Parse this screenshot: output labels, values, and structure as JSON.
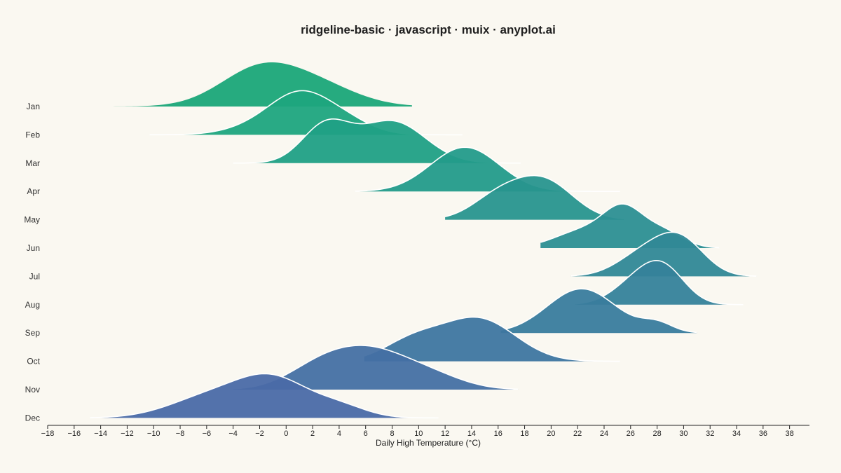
{
  "chart_data": {
    "type": "ridgeline",
    "title": "ridgeline-basic · javascript · muix · anyplot.ai",
    "xlabel": "Daily High Temperature (°C)",
    "ylabel": "",
    "xlim": [
      -18,
      39.5
    ],
    "x_ticks": [
      -18,
      -16,
      -14,
      -12,
      -10,
      -8,
      -6,
      -4,
      -2,
      0,
      2,
      4,
      6,
      8,
      10,
      12,
      14,
      16,
      18,
      20,
      22,
      24,
      26,
      28,
      30,
      32,
      34,
      36,
      38
    ],
    "grid": false,
    "series": [
      {
        "name": "Jan",
        "color": "#1aa678",
        "peaks": [
          [
            -2,
            3.0,
            1.0
          ],
          [
            2.5,
            3.0,
            0.5
          ]
        ],
        "range": [
          -15,
          9.5
        ]
      },
      {
        "name": "Feb",
        "color": "#1da57e",
        "peaks": [
          [
            -1.5,
            2.5,
            0.25
          ],
          [
            1.2,
            2.2,
            0.85
          ],
          [
            4.5,
            2.0,
            0.3
          ]
        ],
        "range": [
          -10.3,
          13.3
        ]
      },
      {
        "name": "Mar",
        "color": "#20a085",
        "peaks": [
          [
            3,
            1.8,
            0.85
          ],
          [
            8,
            2.5,
            0.95
          ]
        ],
        "range": [
          -4,
          17.7
        ]
      },
      {
        "name": "Apr",
        "color": "#239b8a",
        "peaks": [
          [
            13.5,
            2.6,
            1.0
          ]
        ],
        "range": [
          5.2,
          25.2
        ]
      },
      {
        "name": "May",
        "color": "#28958e",
        "peaks": [
          [
            16,
            2.0,
            0.55
          ],
          [
            19.5,
            2.2,
            0.95
          ]
        ],
        "range": [
          12,
          25.5
        ]
      },
      {
        "name": "Jun",
        "color": "#2c8f92",
        "peaks": [
          [
            22.5,
            2.2,
            0.5
          ],
          [
            25.5,
            1.5,
            1.0
          ],
          [
            28.5,
            1.5,
            0.45
          ]
        ],
        "range": [
          19.2,
          32.7
        ]
      },
      {
        "name": "Jul",
        "color": "#308896",
        "peaks": [
          [
            27,
            2.0,
            0.65
          ],
          [
            29.8,
            1.8,
            1.0
          ]
        ],
        "range": [
          21.5,
          35.5
        ]
      },
      {
        "name": "Aug",
        "color": "#35829a",
        "peaks": [
          [
            26.5,
            1.8,
            0.7
          ],
          [
            28.6,
            1.6,
            0.95
          ]
        ],
        "range": [
          21.8,
          34.5
        ]
      },
      {
        "name": "Sep",
        "color": "#397c9d",
        "peaks": [
          [
            22.3,
            2.6,
            1.0
          ],
          [
            28,
            1.2,
            0.2
          ]
        ],
        "range": [
          16.2,
          31
        ]
      },
      {
        "name": "Oct",
        "color": "#3e76a0",
        "peaks": [
          [
            9.5,
            2.2,
            0.45
          ],
          [
            14.5,
            2.8,
            1.0
          ]
        ],
        "range": [
          5.9,
          25.2
        ]
      },
      {
        "name": "Nov",
        "color": "#4470a3",
        "peaks": [
          [
            2.5,
            2.5,
            0.6
          ],
          [
            6.5,
            2.8,
            1.0
          ],
          [
            11,
            2.5,
            0.35
          ]
        ],
        "range": [
          -4,
          17.5
        ]
      },
      {
        "name": "Dec",
        "color": "#4a6aa6",
        "peaks": [
          [
            -6,
            3.0,
            0.5
          ],
          [
            -1,
            2.8,
            1.0
          ],
          [
            4.2,
            2.0,
            0.25
          ]
        ],
        "range": [
          -14.8,
          11.5
        ]
      }
    ]
  }
}
